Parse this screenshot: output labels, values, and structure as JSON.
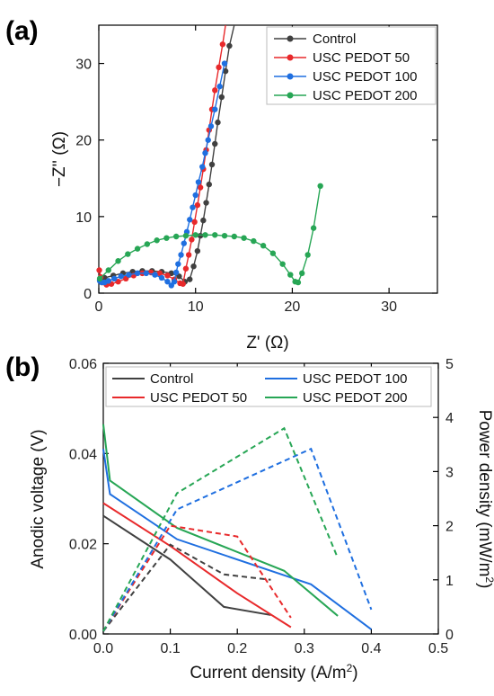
{
  "chart_data": [
    {
      "panel_label": "(a)",
      "type": "scatter",
      "xlabel": "Z' (Ω)",
      "ylabel": "−Z'' (Ω)",
      "xlim": [
        0,
        35
      ],
      "ylim": [
        0,
        35
      ],
      "xticks": [
        "0",
        "10",
        "20",
        "30"
      ],
      "yticks": [
        "0",
        "10",
        "20",
        "30"
      ],
      "legend_position": "top-right",
      "series": [
        {
          "name": "Control",
          "color": "#404040",
          "x": [
            0.1,
            0.6,
            1.5,
            2.5,
            3.5,
            4.5,
            5.5,
            6.5,
            7.5,
            8.3,
            8.9,
            9.4,
            9.8,
            10.2,
            10.5,
            10.8,
            11.1,
            11.4,
            11.7,
            12.0,
            12.3,
            12.7,
            13.1,
            13.5,
            14.0
          ],
          "y": [
            1.7,
            2.0,
            2.3,
            2.6,
            2.8,
            2.9,
            2.9,
            2.8,
            2.6,
            2.2,
            1.5,
            1.8,
            3.5,
            5.5,
            7.5,
            9.5,
            11.8,
            14.2,
            16.8,
            19.5,
            22.3,
            25.6,
            29.0,
            32.3,
            35.0
          ]
        },
        {
          "name": "USC PEDOT 50",
          "color": "#e8292b",
          "x": [
            0.05,
            0.2,
            0.4,
            0.8,
            1.3,
            2.0,
            2.8,
            3.6,
            4.5,
            5.4,
            6.3,
            7.1,
            7.8,
            8.4,
            8.7,
            9.0,
            9.3,
            9.6,
            9.9,
            10.2,
            10.5,
            10.8,
            11.1,
            11.4,
            11.7,
            12.0,
            12.4,
            12.8,
            13.1
          ],
          "y": [
            3.0,
            2.1,
            1.4,
            1.1,
            1.2,
            1.5,
            1.9,
            2.3,
            2.6,
            2.7,
            2.6,
            2.3,
            1.8,
            1.3,
            1.2,
            3.2,
            5.0,
            7.0,
            9.3,
            11.5,
            13.8,
            16.2,
            18.7,
            21.3,
            24.0,
            26.5,
            29.5,
            32.5,
            35.0
          ]
        },
        {
          "name": "USC PEDOT 100",
          "color": "#1f6fe0",
          "x": [
            0.1,
            0.3,
            0.6,
            1.0,
            1.6,
            2.3,
            3.1,
            4.0,
            4.9,
            5.8,
            6.5,
            7.1,
            7.5,
            7.8,
            8.0,
            8.2,
            8.5,
            8.8,
            9.1,
            9.4,
            9.7,
            10.0,
            10.3,
            10.7,
            11.0,
            11.3,
            11.6,
            12.0,
            12.5,
            13.0
          ],
          "y": [
            1.6,
            1.4,
            1.4,
            1.6,
            1.9,
            2.2,
            2.4,
            2.6,
            2.6,
            2.4,
            2.0,
            1.5,
            1.0,
            1.5,
            2.7,
            3.8,
            5.0,
            6.5,
            8.0,
            9.6,
            11.2,
            12.8,
            14.5,
            16.5,
            18.3,
            20.0,
            21.8,
            24.0,
            27.0,
            30.0
          ]
        },
        {
          "name": "USC PEDOT 200",
          "color": "#27a655",
          "x": [
            0.1,
            1.0,
            2.0,
            3.0,
            4.0,
            5.0,
            6.0,
            7.0,
            8.0,
            9.0,
            10.0,
            11.0,
            12.0,
            13.0,
            14.0,
            15.0,
            16.0,
            17.0,
            18.0,
            19.0,
            19.8,
            20.3,
            20.6,
            21.0,
            21.6,
            22.2,
            22.9
          ],
          "y": [
            1.9,
            3.0,
            4.2,
            5.1,
            5.8,
            6.4,
            6.9,
            7.2,
            7.4,
            7.5,
            7.6,
            7.6,
            7.6,
            7.5,
            7.4,
            7.2,
            6.8,
            6.2,
            5.2,
            3.8,
            2.4,
            1.5,
            1.4,
            2.6,
            5.0,
            8.5,
            14.0
          ]
        }
      ]
    },
    {
      "panel_label": "(b)",
      "type": "line",
      "xlabel": "Current density (A/m²)",
      "ylabel_left": "Anodic voltage (V)",
      "ylabel_right": "Power density (mW/m²)",
      "xlim": [
        0,
        0.5
      ],
      "ylim_left": [
        0,
        0.06
      ],
      "ylim_right": [
        0,
        5
      ],
      "xticks": [
        "0.0",
        "0.1",
        "0.2",
        "0.3",
        "0.4",
        "0.5"
      ],
      "yticks_left": [
        "0.00",
        "0.02",
        "0.04",
        "0.06"
      ],
      "yticks_right": [
        "0",
        "1",
        "2",
        "3",
        "4",
        "5"
      ],
      "legend_position": "top",
      "series": [
        {
          "name": "Control",
          "color": "#404040",
          "axis": "left",
          "style": "solid",
          "x": [
            0.0,
            0.1,
            0.18,
            0.25
          ],
          "y": [
            0.0262,
            0.0165,
            0.006,
            0.0042
          ]
        },
        {
          "name": "USC PEDOT 50",
          "color": "#e8292b",
          "axis": "left",
          "style": "solid",
          "x": [
            0.0,
            0.1,
            0.2,
            0.28
          ],
          "y": [
            0.029,
            0.0195,
            0.009,
            0.0015
          ]
        },
        {
          "name": "USC PEDOT 100",
          "color": "#1f6fe0",
          "axis": "left",
          "style": "solid",
          "x": [
            0.0,
            0.01,
            0.11,
            0.31,
            0.4
          ],
          "y": [
            0.041,
            0.031,
            0.021,
            0.011,
            0.001
          ]
        },
        {
          "name": "USC PEDOT 200",
          "color": "#27a655",
          "axis": "left",
          "style": "solid",
          "x": [
            0.0,
            0.01,
            0.11,
            0.27,
            0.35
          ],
          "y": [
            0.0465,
            0.034,
            0.0235,
            0.014,
            0.004
          ]
        },
        {
          "color": "#404040",
          "axis": "right",
          "style": "dashed",
          "x": [
            0.0,
            0.1,
            0.18,
            0.25
          ],
          "y": [
            0.05,
            1.65,
            1.1,
            1.0
          ]
        },
        {
          "color": "#e8292b",
          "axis": "right",
          "style": "dashed",
          "x": [
            0.0,
            0.1,
            0.2,
            0.28
          ],
          "y": [
            0.05,
            2.0,
            1.8,
            0.3
          ]
        },
        {
          "color": "#1f6fe0",
          "axis": "right",
          "style": "dashed",
          "x": [
            0.0,
            0.11,
            0.31,
            0.4
          ],
          "y": [
            0.05,
            2.3,
            3.42,
            0.45
          ]
        },
        {
          "color": "#27a655",
          "axis": "right",
          "style": "dashed",
          "x": [
            0.0,
            0.11,
            0.27,
            0.35
          ],
          "y": [
            0.05,
            2.6,
            3.8,
            1.4
          ]
        }
      ]
    }
  ]
}
